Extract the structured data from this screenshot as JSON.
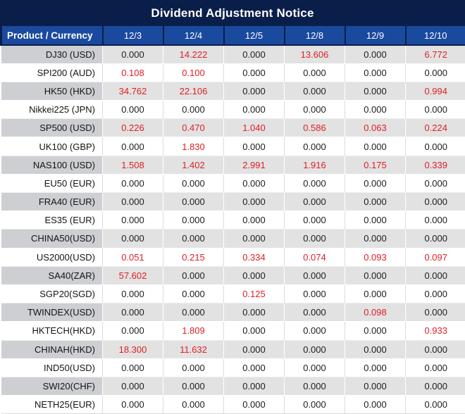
{
  "title": "Dividend Adjustment Notice",
  "colors": {
    "title_bg": "#0a1e4a",
    "header_bg": "#1a4a9e",
    "stripe_label_bg": "#cdcfd3",
    "stripe_value_bg": "#e2e2e2",
    "negative_red": "#e01e25",
    "text": "#1c1c1c"
  },
  "table": {
    "product_header": "Product / Currency",
    "date_headers": [
      "12/3",
      "12/4",
      "12/5",
      "12/8",
      "12/9",
      "12/10"
    ],
    "rows": [
      {
        "product": "DJ30 (USD)",
        "values": [
          "0.000",
          "14.222",
          "0.000",
          "13.606",
          "0.000",
          "6.772"
        ],
        "red": [
          false,
          true,
          false,
          true,
          false,
          true
        ]
      },
      {
        "product": "SPI200 (AUD)",
        "values": [
          "0.108",
          "0.100",
          "0.000",
          "0.000",
          "0.000",
          "0.000"
        ],
        "red": [
          true,
          true,
          false,
          false,
          false,
          false
        ]
      },
      {
        "product": "HK50 (HKD)",
        "values": [
          "34.762",
          "22.106",
          "0.000",
          "0.000",
          "0.000",
          "0.994"
        ],
        "red": [
          true,
          true,
          false,
          false,
          false,
          true
        ]
      },
      {
        "product": "Nikkei225 (JPN)",
        "values": [
          "0.000",
          "0.000",
          "0.000",
          "0.000",
          "0.000",
          "0.000"
        ],
        "red": [
          false,
          false,
          false,
          false,
          false,
          false
        ]
      },
      {
        "product": "SP500 (USD)",
        "values": [
          "0.226",
          "0.470",
          "1.040",
          "0.586",
          "0.063",
          "0.224"
        ],
        "red": [
          true,
          true,
          true,
          true,
          true,
          true
        ]
      },
      {
        "product": "UK100 (GBP)",
        "values": [
          "0.000",
          "1.830",
          "0.000",
          "0.000",
          "0.000",
          "0.000"
        ],
        "red": [
          false,
          true,
          false,
          false,
          false,
          false
        ]
      },
      {
        "product": "NAS100 (USD)",
        "values": [
          "1.508",
          "1.402",
          "2.991",
          "1.916",
          "0.175",
          "0.339"
        ],
        "red": [
          true,
          true,
          true,
          true,
          true,
          true
        ]
      },
      {
        "product": "EU50 (EUR)",
        "values": [
          "0.000",
          "0.000",
          "0.000",
          "0.000",
          "0.000",
          "0.000"
        ],
        "red": [
          false,
          false,
          false,
          false,
          false,
          false
        ]
      },
      {
        "product": "FRA40 (EUR)",
        "values": [
          "0.000",
          "0.000",
          "0.000",
          "0.000",
          "0.000",
          "0.000"
        ],
        "red": [
          false,
          false,
          false,
          false,
          false,
          false
        ]
      },
      {
        "product": "ES35 (EUR)",
        "values": [
          "0.000",
          "0.000",
          "0.000",
          "0.000",
          "0.000",
          "0.000"
        ],
        "red": [
          false,
          false,
          false,
          false,
          false,
          false
        ]
      },
      {
        "product": "CHINA50(USD)",
        "values": [
          "0.000",
          "0.000",
          "0.000",
          "0.000",
          "0.000",
          "0.000"
        ],
        "red": [
          false,
          false,
          false,
          false,
          false,
          false
        ]
      },
      {
        "product": "US2000(USD)",
        "values": [
          "0.051",
          "0.215",
          "0.334",
          "0.074",
          "0.093",
          "0.097"
        ],
        "red": [
          true,
          true,
          true,
          true,
          true,
          true
        ]
      },
      {
        "product": "SA40(ZAR)",
        "values": [
          "57.602",
          "0.000",
          "0.000",
          "0.000",
          "0.000",
          "0.000"
        ],
        "red": [
          true,
          false,
          false,
          false,
          false,
          false
        ]
      },
      {
        "product": "SGP20(SGD)",
        "values": [
          "0.000",
          "0.000",
          "0.125",
          "0.000",
          "0.000",
          "0.000"
        ],
        "red": [
          false,
          false,
          true,
          false,
          false,
          false
        ]
      },
      {
        "product": "TWINDEX(USD)",
        "values": [
          "0.000",
          "0.000",
          "0.000",
          "0.000",
          "0.098",
          "0.000"
        ],
        "red": [
          false,
          false,
          false,
          false,
          true,
          false
        ]
      },
      {
        "product": "HKTECH(HKD)",
        "values": [
          "0.000",
          "1.809",
          "0.000",
          "0.000",
          "0.000",
          "0.933"
        ],
        "red": [
          false,
          true,
          false,
          false,
          false,
          true
        ]
      },
      {
        "product": "CHINAH(HKD)",
        "values": [
          "18.300",
          "11.632",
          "0.000",
          "0.000",
          "0.000",
          "0.000"
        ],
        "red": [
          true,
          true,
          false,
          false,
          false,
          false
        ]
      },
      {
        "product": "IND50(USD)",
        "values": [
          "0.000",
          "0.000",
          "0.000",
          "0.000",
          "0.000",
          "0.000"
        ],
        "red": [
          false,
          false,
          false,
          false,
          false,
          false
        ]
      },
      {
        "product": "SWI20(CHF)",
        "values": [
          "0.000",
          "0.000",
          "0.000",
          "0.000",
          "0.000",
          "0.000"
        ],
        "red": [
          false,
          false,
          false,
          false,
          false,
          false
        ]
      },
      {
        "product": "NETH25(EUR)",
        "values": [
          "0.000",
          "0.000",
          "0.000",
          "0.000",
          "0.000",
          "0.000"
        ],
        "red": [
          false,
          false,
          false,
          false,
          false,
          false
        ]
      }
    ]
  }
}
